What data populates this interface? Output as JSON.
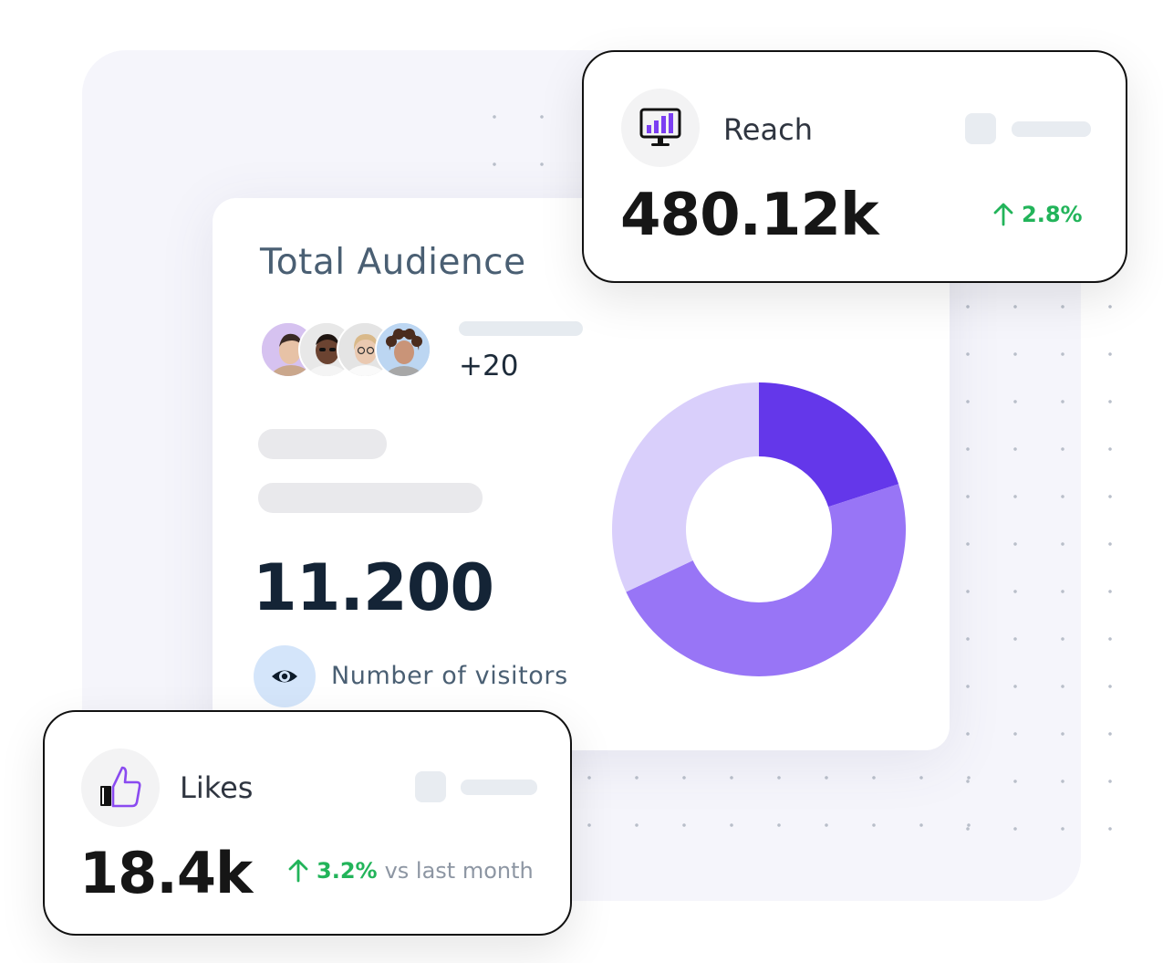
{
  "total_audience": {
    "title": "Total Audience",
    "extra_members": "+20",
    "visitors_count": "11.200",
    "visitors_label": "Number of visitors"
  },
  "reach": {
    "label": "Reach",
    "value": "480.12k",
    "change": "2.8%"
  },
  "likes": {
    "label": "Likes",
    "value": "18.4k",
    "change": "3.2%",
    "change_suffix": "vs last month"
  },
  "colors": {
    "accent_dark_purple": "#6437ea",
    "accent_mid_purple": "#9875f6",
    "accent_light_purple": "#d9cffb",
    "positive_green": "#22b45a"
  },
  "chart_data": {
    "type": "pie",
    "variant": "donut",
    "values": [
      20,
      48,
      32
    ]
  }
}
